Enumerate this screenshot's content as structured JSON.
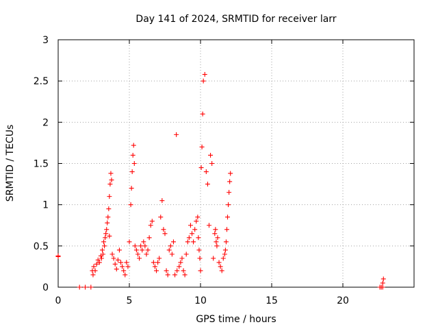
{
  "chart_data": {
    "type": "scatter",
    "title": "Day 141 of 2024, SRMTID for receiver larr",
    "xlabel": "GPS time / hours",
    "ylabel": "SRMTID / TECUs",
    "xlim": [
      0,
      25
    ],
    "ylim": [
      0,
      3
    ],
    "xticks": [
      0,
      5,
      10,
      15,
      20
    ],
    "xtick_labels": [
      "0",
      "5",
      "10",
      "15",
      "20"
    ],
    "yticks": [
      0,
      0.5,
      1,
      1.5,
      2,
      2.5,
      3
    ],
    "ytick_labels": [
      "0",
      "0.5",
      "1",
      "1.5",
      "2",
      "2.5",
      "3"
    ],
    "grid": true,
    "marker": "plus",
    "series": [
      {
        "name": "SRMTID",
        "color": "#ff0000",
        "x": [
          0.0,
          0.0,
          1.5,
          1.9,
          2.3,
          2.4,
          2.45,
          2.5,
          2.6,
          2.7,
          2.8,
          2.9,
          3.0,
          3.05,
          3.1,
          3.15,
          3.2,
          3.25,
          3.3,
          3.35,
          3.4,
          3.45,
          3.5,
          3.55,
          3.6,
          3.6,
          3.65,
          3.7,
          3.75,
          3.8,
          3.9,
          4.0,
          4.1,
          4.2,
          4.3,
          4.4,
          4.5,
          4.6,
          4.7,
          4.8,
          4.9,
          5.0,
          5.1,
          5.15,
          5.2,
          5.25,
          5.3,
          5.35,
          5.4,
          5.5,
          5.6,
          5.7,
          5.8,
          5.9,
          6.0,
          6.1,
          6.2,
          6.3,
          6.4,
          6.5,
          6.6,
          6.7,
          6.8,
          6.9,
          7.0,
          7.1,
          7.2,
          7.3,
          7.4,
          7.5,
          7.6,
          7.7,
          7.8,
          7.9,
          8.0,
          8.1,
          8.2,
          8.3,
          8.35,
          8.5,
          8.6,
          8.7,
          8.8,
          8.9,
          9.0,
          9.1,
          9.2,
          9.3,
          9.4,
          9.5,
          9.6,
          9.7,
          9.8,
          9.85,
          9.9,
          9.95,
          10.0,
          10.05,
          10.1,
          10.15,
          10.2,
          10.3,
          10.4,
          10.5,
          10.6,
          10.7,
          10.8,
          10.9,
          11.0,
          11.05,
          11.1,
          11.15,
          11.2,
          11.3,
          11.4,
          11.5,
          11.6,
          11.7,
          11.75,
          11.8,
          11.85,
          11.9,
          11.95,
          12.0,
          12.05,
          12.1,
          22.6,
          22.7,
          22.8,
          22.8,
          22.85
        ],
        "y": [
          0.37,
          0.38,
          0.0,
          0.0,
          0.0,
          0.2,
          0.15,
          0.25,
          0.2,
          0.28,
          0.33,
          0.3,
          0.38,
          0.35,
          0.45,
          0.4,
          0.55,
          0.5,
          0.6,
          0.65,
          0.7,
          0.78,
          0.85,
          0.95,
          1.1,
          0.62,
          1.25,
          1.38,
          1.3,
          0.4,
          0.35,
          0.28,
          0.22,
          0.33,
          0.45,
          0.3,
          0.25,
          0.2,
          0.15,
          0.3,
          0.25,
          0.55,
          1.0,
          1.2,
          1.4,
          1.6,
          1.72,
          1.5,
          0.5,
          0.45,
          0.4,
          0.35,
          0.5,
          0.45,
          0.55,
          0.5,
          0.4,
          0.45,
          0.6,
          0.75,
          0.8,
          0.3,
          0.25,
          0.2,
          0.3,
          0.35,
          0.85,
          1.05,
          0.7,
          0.65,
          0.2,
          0.15,
          0.45,
          0.5,
          0.4,
          0.55,
          0.15,
          1.85,
          0.2,
          0.25,
          0.3,
          0.35,
          0.2,
          0.15,
          0.4,
          0.55,
          0.6,
          0.75,
          0.65,
          0.55,
          0.7,
          0.8,
          0.85,
          0.6,
          0.45,
          0.35,
          0.2,
          1.45,
          1.7,
          2.1,
          2.5,
          2.58,
          1.4,
          1.25,
          0.75,
          1.6,
          1.5,
          0.35,
          0.65,
          0.7,
          0.55,
          0.5,
          0.6,
          0.3,
          0.25,
          0.2,
          0.35,
          0.4,
          0.45,
          0.55,
          0.7,
          0.85,
          1.0,
          1.15,
          1.28,
          1.38,
          0.0,
          0.0,
          0.0,
          0.05,
          0.1
        ]
      }
    ]
  }
}
